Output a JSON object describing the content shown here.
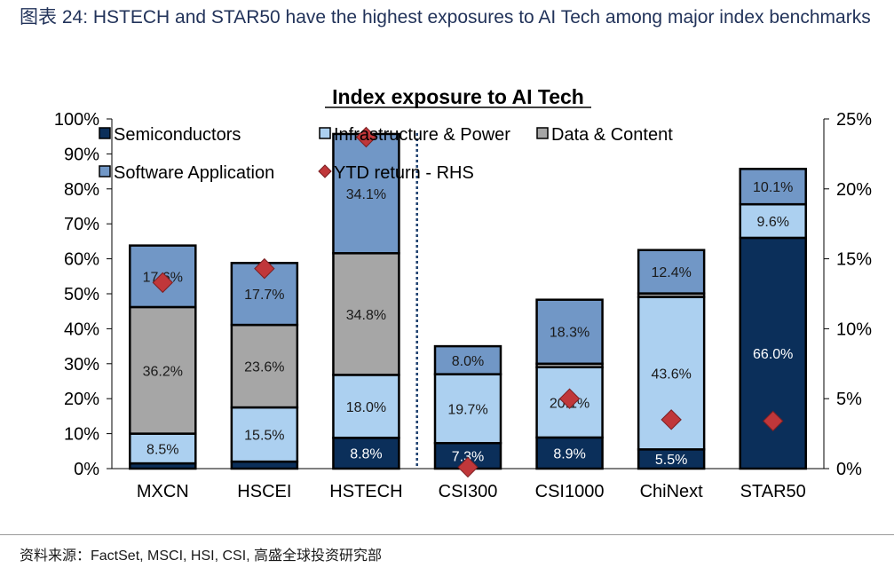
{
  "figure_title": "图表 24: HSTECH and STAR50 have the highest exposures to AI Tech among major index benchmarks",
  "source": "资料来源：FactSet, MSCI, HSI, CSI, 高盛全球投资研究部",
  "chart_data": {
    "type": "bar",
    "stacked": true,
    "title": "Index exposure to AI Tech",
    "xlabel": "",
    "ylabel": "",
    "categories": [
      "MXCN",
      "HSCEI",
      "HSTECH",
      "CSI300",
      "CSI1000",
      "ChiNext",
      "STAR50"
    ],
    "ylim": [
      0,
      100
    ],
    "y2lim": [
      0,
      25
    ],
    "y_ticks": [
      "0%",
      "10%",
      "20%",
      "30%",
      "40%",
      "50%",
      "60%",
      "70%",
      "80%",
      "90%",
      "100%"
    ],
    "y2_ticks": [
      "0%",
      "5%",
      "10%",
      "15%",
      "20%",
      "25%"
    ],
    "grid": false,
    "legend_position": "top-left",
    "series": [
      {
        "name": "Semiconductors",
        "color": "#0b2f5a",
        "label_color": "#ffffff",
        "values": [
          1.5,
          2.0,
          8.8,
          7.3,
          8.9,
          5.5,
          66.0
        ],
        "labels": [
          "",
          "",
          "8.8%",
          "7.3%",
          "8.9%",
          "5.5%",
          "66.0%"
        ]
      },
      {
        "name": "Infrastructure & Power",
        "color": "#acd0f0",
        "label_color": "#1a1a1a",
        "values": [
          8.5,
          15.5,
          18.0,
          19.7,
          20.1,
          43.6,
          9.6
        ],
        "labels": [
          "8.5%",
          "15.5%",
          "18.0%",
          "19.7%",
          "20.1%",
          "43.6%",
          "9.6%"
        ]
      },
      {
        "name": "Data & Content",
        "color": "#a6a6a6",
        "label_color": "#1a1a1a",
        "values": [
          36.2,
          23.6,
          34.8,
          0,
          1.0,
          1.0,
          0
        ],
        "labels": [
          "36.2%",
          "23.6%",
          "34.8%",
          "",
          "",
          "",
          ""
        ]
      },
      {
        "name": "Software Application",
        "color": "#7197c6",
        "label_color": "#1a1a1a",
        "values": [
          17.6,
          17.7,
          34.1,
          8.0,
          18.3,
          12.4,
          10.1
        ],
        "labels": [
          "17.6%",
          "17.7%",
          "34.1%",
          "8.0%",
          "18.3%",
          "12.4%",
          "10.1%"
        ]
      }
    ],
    "line_series": {
      "name": "YTD return - RHS",
      "axis": "right",
      "marker": "diamond",
      "color": "#c0373a",
      "values": [
        13.3,
        14.3,
        23.7,
        0.1,
        5.0,
        3.5,
        3.4
      ]
    },
    "divider_after_category": "HSTECH"
  }
}
